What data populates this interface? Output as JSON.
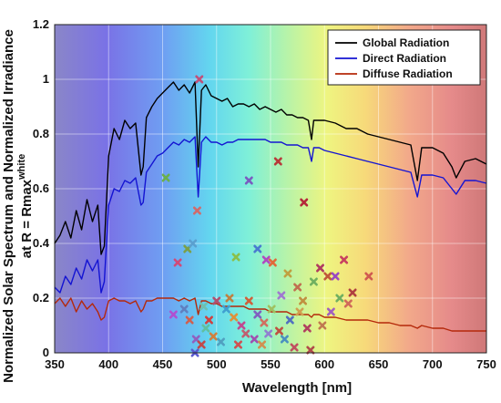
{
  "chart_data": {
    "type": "line",
    "xlabel": "Wavelength [nm]",
    "ylabel_line1": "Normalized Solar Spectrum and Normalized Irradiance",
    "ylabel_line2_prefix": "at R = Rmax",
    "ylabel_line2_superscript": "white",
    "xlim": [
      350,
      750
    ],
    "ylim": [
      0,
      1.2
    ],
    "x_ticks": [
      "350",
      "400",
      "450",
      "500",
      "550",
      "600",
      "650",
      "700",
      "750"
    ],
    "y_ticks": [
      "0",
      "0.2",
      "0.4",
      "0.6",
      "0.8",
      "1",
      "1.2"
    ],
    "grid": true,
    "legend_position": "top-right",
    "background": "visible-spectrum rainbow gradient",
    "series": [
      {
        "name": "Global Radiation",
        "color": "#000000",
        "x": [
          350,
          355,
          360,
          365,
          370,
          375,
          380,
          385,
          390,
          393,
          396,
          400,
          405,
          410,
          415,
          420,
          425,
          430,
          432,
          435,
          440,
          445,
          450,
          455,
          460,
          465,
          470,
          475,
          480,
          483,
          486,
          490,
          495,
          500,
          505,
          510,
          515,
          520,
          525,
          530,
          535,
          540,
          545,
          550,
          555,
          560,
          565,
          570,
          575,
          580,
          585,
          588,
          590,
          595,
          600,
          610,
          620,
          630,
          640,
          650,
          660,
          670,
          680,
          686,
          690,
          700,
          710,
          718,
          722,
          730,
          740,
          750
        ],
        "y": [
          0.4,
          0.43,
          0.48,
          0.42,
          0.52,
          0.45,
          0.56,
          0.48,
          0.54,
          0.36,
          0.39,
          0.72,
          0.82,
          0.78,
          0.85,
          0.82,
          0.84,
          0.65,
          0.68,
          0.86,
          0.9,
          0.93,
          0.95,
          0.97,
          0.99,
          0.96,
          0.98,
          0.95,
          0.99,
          0.68,
          0.96,
          0.98,
          0.94,
          0.93,
          0.92,
          0.93,
          0.9,
          0.91,
          0.91,
          0.9,
          0.91,
          0.89,
          0.9,
          0.89,
          0.88,
          0.89,
          0.87,
          0.87,
          0.86,
          0.86,
          0.85,
          0.78,
          0.85,
          0.85,
          0.85,
          0.84,
          0.82,
          0.82,
          0.8,
          0.79,
          0.78,
          0.77,
          0.76,
          0.63,
          0.75,
          0.75,
          0.73,
          0.68,
          0.64,
          0.7,
          0.71,
          0.69
        ]
      },
      {
        "name": "Direct Radiation",
        "color": "#1414d2",
        "x": [
          350,
          355,
          360,
          365,
          370,
          375,
          380,
          385,
          390,
          393,
          396,
          400,
          405,
          410,
          415,
          420,
          425,
          430,
          432,
          435,
          440,
          445,
          450,
          455,
          460,
          465,
          470,
          475,
          480,
          483,
          486,
          490,
          495,
          500,
          505,
          510,
          515,
          520,
          525,
          530,
          535,
          540,
          545,
          550,
          555,
          560,
          565,
          570,
          575,
          580,
          585,
          588,
          590,
          595,
          600,
          610,
          620,
          630,
          640,
          650,
          660,
          670,
          680,
          686,
          690,
          700,
          710,
          718,
          722,
          730,
          740,
          750
        ],
        "y": [
          0.24,
          0.22,
          0.28,
          0.25,
          0.31,
          0.27,
          0.34,
          0.3,
          0.34,
          0.22,
          0.26,
          0.54,
          0.6,
          0.59,
          0.63,
          0.62,
          0.64,
          0.54,
          0.55,
          0.66,
          0.69,
          0.72,
          0.73,
          0.75,
          0.77,
          0.76,
          0.78,
          0.77,
          0.79,
          0.57,
          0.77,
          0.79,
          0.77,
          0.77,
          0.76,
          0.77,
          0.77,
          0.78,
          0.78,
          0.78,
          0.78,
          0.78,
          0.78,
          0.77,
          0.77,
          0.77,
          0.76,
          0.76,
          0.76,
          0.75,
          0.75,
          0.7,
          0.75,
          0.75,
          0.74,
          0.73,
          0.72,
          0.71,
          0.7,
          0.69,
          0.68,
          0.67,
          0.66,
          0.57,
          0.65,
          0.65,
          0.64,
          0.6,
          0.58,
          0.63,
          0.63,
          0.62
        ]
      },
      {
        "name": "Diffuse Radiation",
        "color": "#b4280a",
        "x": [
          350,
          355,
          360,
          365,
          370,
          375,
          380,
          385,
          390,
          393,
          396,
          400,
          405,
          410,
          415,
          420,
          425,
          430,
          432,
          435,
          440,
          445,
          450,
          455,
          460,
          465,
          470,
          475,
          480,
          483,
          486,
          490,
          495,
          500,
          505,
          510,
          515,
          520,
          525,
          530,
          535,
          540,
          545,
          550,
          555,
          560,
          565,
          570,
          575,
          580,
          585,
          588,
          590,
          595,
          600,
          610,
          620,
          630,
          640,
          650,
          660,
          670,
          680,
          686,
          690,
          700,
          710,
          718,
          722,
          730,
          740,
          750
        ],
        "y": [
          0.18,
          0.2,
          0.17,
          0.2,
          0.15,
          0.19,
          0.16,
          0.18,
          0.15,
          0.12,
          0.13,
          0.19,
          0.2,
          0.19,
          0.19,
          0.18,
          0.19,
          0.15,
          0.16,
          0.19,
          0.19,
          0.2,
          0.2,
          0.2,
          0.2,
          0.19,
          0.2,
          0.19,
          0.2,
          0.14,
          0.19,
          0.19,
          0.18,
          0.18,
          0.17,
          0.17,
          0.17,
          0.17,
          0.17,
          0.16,
          0.16,
          0.16,
          0.16,
          0.15,
          0.15,
          0.15,
          0.15,
          0.14,
          0.14,
          0.14,
          0.14,
          0.13,
          0.14,
          0.14,
          0.13,
          0.13,
          0.12,
          0.12,
          0.12,
          0.11,
          0.11,
          0.1,
          0.1,
          0.09,
          0.1,
          0.09,
          0.09,
          0.08,
          0.08,
          0.08,
          0.08,
          0.08
        ]
      }
    ],
    "markers": {
      "symbol": "x",
      "points": [
        {
          "x": 453,
          "y": 0.64,
          "color": "#6ab04c"
        },
        {
          "x": 482,
          "y": 0.52,
          "color": "#d16b6b"
        },
        {
          "x": 484,
          "y": 1.0,
          "color": "#c0507a"
        },
        {
          "x": 557,
          "y": 0.7,
          "color": "#b83a3a"
        },
        {
          "x": 581,
          "y": 0.55,
          "color": "#b4283a"
        },
        {
          "x": 530,
          "y": 0.63,
          "color": "#7a5cc0"
        },
        {
          "x": 538,
          "y": 0.38,
          "color": "#4a7bd0"
        },
        {
          "x": 473,
          "y": 0.38,
          "color": "#7ba04a"
        },
        {
          "x": 478,
          "y": 0.4,
          "color": "#5aa0d0"
        },
        {
          "x": 464,
          "y": 0.33,
          "color": "#d04a7a"
        },
        {
          "x": 518,
          "y": 0.35,
          "color": "#8ac04a"
        },
        {
          "x": 546,
          "y": 0.34,
          "color": "#b04ac0"
        },
        {
          "x": 552,
          "y": 0.33,
          "color": "#e06a3a"
        },
        {
          "x": 566,
          "y": 0.29,
          "color": "#c0a040"
        },
        {
          "x": 596,
          "y": 0.31,
          "color": "#b03a60"
        },
        {
          "x": 603,
          "y": 0.28,
          "color": "#c05a3a"
        },
        {
          "x": 610,
          "y": 0.28,
          "color": "#9a4ac0"
        },
        {
          "x": 618,
          "y": 0.34,
          "color": "#c84060"
        },
        {
          "x": 626,
          "y": 0.22,
          "color": "#b04040"
        },
        {
          "x": 641,
          "y": 0.28,
          "color": "#d05a50"
        },
        {
          "x": 590,
          "y": 0.26,
          "color": "#70b060"
        },
        {
          "x": 575,
          "y": 0.24,
          "color": "#c07050"
        },
        {
          "x": 560,
          "y": 0.21,
          "color": "#a07ad0"
        },
        {
          "x": 530,
          "y": 0.19,
          "color": "#d0603a"
        },
        {
          "x": 512,
          "y": 0.2,
          "color": "#c08040"
        },
        {
          "x": 500,
          "y": 0.19,
          "color": "#b05070"
        },
        {
          "x": 488,
          "y": 0.17,
          "color": "#70c0b0"
        },
        {
          "x": 493,
          "y": 0.12,
          "color": "#d04040"
        },
        {
          "x": 509,
          "y": 0.16,
          "color": "#40a0d0"
        },
        {
          "x": 516,
          "y": 0.13,
          "color": "#e0903a"
        },
        {
          "x": 523,
          "y": 0.1,
          "color": "#c04a90"
        },
        {
          "x": 538,
          "y": 0.14,
          "color": "#8060c0"
        },
        {
          "x": 544,
          "y": 0.11,
          "color": "#d07060"
        },
        {
          "x": 551,
          "y": 0.16,
          "color": "#a0c060"
        },
        {
          "x": 558,
          "y": 0.08,
          "color": "#c05040"
        },
        {
          "x": 568,
          "y": 0.12,
          "color": "#5070c0"
        },
        {
          "x": 577,
          "y": 0.15,
          "color": "#d0a050"
        },
        {
          "x": 584,
          "y": 0.09,
          "color": "#b04060"
        },
        {
          "x": 460,
          "y": 0.14,
          "color": "#b050d0"
        },
        {
          "x": 470,
          "y": 0.16,
          "color": "#6080c0"
        },
        {
          "x": 475,
          "y": 0.12,
          "color": "#d06050"
        },
        {
          "x": 481,
          "y": 0.05,
          "color": "#9060c0"
        },
        {
          "x": 486,
          "y": 0.03,
          "color": "#c04a4a"
        },
        {
          "x": 497,
          "y": 0.06,
          "color": "#d08040"
        },
        {
          "x": 504,
          "y": 0.04,
          "color": "#50a0c0"
        },
        {
          "x": 527,
          "y": 0.07,
          "color": "#c06070"
        },
        {
          "x": 535,
          "y": 0.05,
          "color": "#a050b0"
        },
        {
          "x": 542,
          "y": 0.03,
          "color": "#d09050"
        },
        {
          "x": 563,
          "y": 0.05,
          "color": "#4a90c0"
        },
        {
          "x": 572,
          "y": 0.02,
          "color": "#c05060"
        },
        {
          "x": 587,
          "y": 0.01,
          "color": "#b04a4a"
        },
        {
          "x": 598,
          "y": 0.1,
          "color": "#c07a50"
        },
        {
          "x": 606,
          "y": 0.15,
          "color": "#a060c0"
        },
        {
          "x": 614,
          "y": 0.2,
          "color": "#70b060"
        },
        {
          "x": 622,
          "y": 0.18,
          "color": "#d06a5a"
        },
        {
          "x": 480,
          "y": 0.0,
          "color": "#5a5ad0"
        },
        {
          "x": 490,
          "y": 0.09,
          "color": "#60c0a0"
        },
        {
          "x": 520,
          "y": 0.03,
          "color": "#d05050"
        },
        {
          "x": 548,
          "y": 0.07,
          "color": "#9080d0"
        },
        {
          "x": 580,
          "y": 0.19,
          "color": "#c09040"
        }
      ]
    }
  }
}
